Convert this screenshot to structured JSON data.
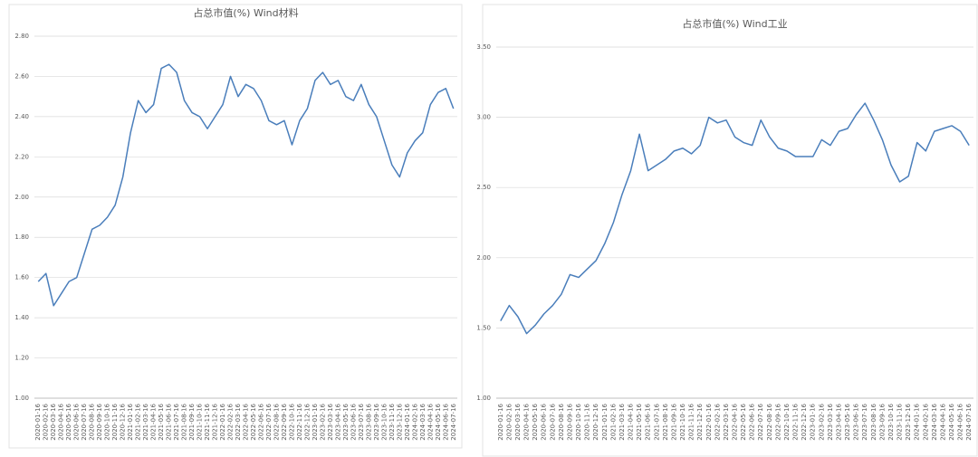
{
  "chart_data": [
    {
      "type": "line",
      "title": "占总市值(%) Wind材料",
      "x": [
        "2020-01-16",
        "2020-02-16",
        "2020-03-16",
        "2020-04-16",
        "2020-05-16",
        "2020-06-16",
        "2020-07-16",
        "2020-08-16",
        "2020-09-16",
        "2020-10-16",
        "2020-11-16",
        "2020-12-16",
        "2021-01-16",
        "2021-02-16",
        "2021-03-16",
        "2021-04-16",
        "2021-05-16",
        "2021-06-16",
        "2021-07-16",
        "2021-08-16",
        "2021-09-16",
        "2021-10-16",
        "2021-11-16",
        "2021-12-16",
        "2022-01-16",
        "2022-02-16",
        "2022-03-16",
        "2022-04-16",
        "2022-05-16",
        "2022-06-16",
        "2022-07-16",
        "2022-08-16",
        "2022-09-16",
        "2022-10-16",
        "2022-11-16",
        "2022-12-16",
        "2023-01-16",
        "2023-02-16",
        "2023-03-16",
        "2023-04-16",
        "2023-05-16",
        "2023-06-16",
        "2023-07-16",
        "2023-08-16",
        "2023-09-16",
        "2023-10-16",
        "2023-11-16",
        "2023-12-16",
        "2024-01-16",
        "2024-02-16",
        "2024-03-16",
        "2024-04-16",
        "2024-05-16",
        "2024-06-16",
        "2024-07-16"
      ],
      "series": [
        {
          "color": "#4a7ebb",
          "values": [
            1.58,
            1.62,
            1.46,
            1.52,
            1.58,
            1.6,
            1.72,
            1.84,
            1.86,
            1.9,
            1.96,
            2.1,
            2.32,
            2.48,
            2.42,
            2.46,
            2.64,
            2.66,
            2.62,
            2.48,
            2.42,
            2.4,
            2.34,
            2.4,
            2.46,
            2.6,
            2.5,
            2.56,
            2.54,
            2.48,
            2.38,
            2.36,
            2.38,
            2.26,
            2.38,
            2.44,
            2.58,
            2.62,
            2.56,
            2.58,
            2.5,
            2.48,
            2.56,
            2.46,
            2.4,
            2.28,
            2.16,
            2.1,
            2.22,
            2.28,
            2.32,
            2.46,
            2.52,
            2.54,
            2.44
          ]
        }
      ],
      "ylim": [
        1.0,
        2.8
      ],
      "yticks": [
        {
          "value": 1.0,
          "label": "1.00"
        },
        {
          "value": 1.2,
          "label": "1.20"
        },
        {
          "value": 1.4,
          "label": "1.40"
        },
        {
          "value": 1.6,
          "label": "1.60"
        },
        {
          "value": 1.8,
          "label": "1.80"
        },
        {
          "value": 2.0,
          "label": "2.00"
        },
        {
          "value": 2.2,
          "label": "2.20"
        },
        {
          "value": 2.4,
          "label": "2.40"
        },
        {
          "value": 2.6,
          "label": "2.60"
        },
        {
          "value": 2.8,
          "label": "2.80"
        }
      ],
      "grid": true
    },
    {
      "type": "line",
      "title": "占总市值(%) Wind工业",
      "x": [
        "2020-01-16",
        "2020-02-16",
        "2020-03-16",
        "2020-04-16",
        "2020-05-16",
        "2020-06-16",
        "2020-07-16",
        "2020-08-16",
        "2020-09-16",
        "2020-10-16",
        "2020-11-16",
        "2020-12-16",
        "2021-01-16",
        "2021-02-16",
        "2021-03-16",
        "2021-04-16",
        "2021-05-16",
        "2021-06-16",
        "2021-07-16",
        "2021-08-16",
        "2021-09-16",
        "2021-10-16",
        "2021-11-16",
        "2021-12-16",
        "2022-01-16",
        "2022-02-16",
        "2022-03-16",
        "2022-04-16",
        "2022-05-16",
        "2022-06-16",
        "2022-07-16",
        "2022-08-16",
        "2022-09-16",
        "2022-10-16",
        "2022-11-16",
        "2022-12-16",
        "2023-01-16",
        "2023-02-16",
        "2023-03-16",
        "2023-04-16",
        "2023-05-16",
        "2023-06-16",
        "2023-07-16",
        "2023-08-16",
        "2023-09-16",
        "2023-10-16",
        "2023-11-16",
        "2023-12-16",
        "2024-01-16",
        "2024-02-16",
        "2024-03-16",
        "2024-04-16",
        "2024-05-16",
        "2024-06-16",
        "2024-07-16"
      ],
      "series": [
        {
          "color": "#4a7ebb",
          "values": [
            1.55,
            1.66,
            1.58,
            1.46,
            1.52,
            1.6,
            1.66,
            1.74,
            1.88,
            1.86,
            1.92,
            1.98,
            2.1,
            2.25,
            2.45,
            2.62,
            2.88,
            2.62,
            2.66,
            2.7,
            2.76,
            2.78,
            2.74,
            2.8,
            3.0,
            2.96,
            2.98,
            2.86,
            2.82,
            2.8,
            2.98,
            2.86,
            2.78,
            2.76,
            2.72,
            2.72,
            2.72,
            2.84,
            2.8,
            2.9,
            2.92,
            3.02,
            3.1,
            2.98,
            2.84,
            2.66,
            2.54,
            2.58,
            2.82,
            2.76,
            2.9,
            2.92,
            2.94,
            2.9,
            2.8
          ]
        }
      ],
      "ylim": [
        1.0,
        3.5
      ],
      "yticks": [
        {
          "value": 1.0,
          "label": "1.00"
        },
        {
          "value": 1.5,
          "label": "1.50"
        },
        {
          "value": 2.0,
          "label": "2.00"
        },
        {
          "value": 2.5,
          "label": "2.50"
        },
        {
          "value": 3.0,
          "label": "3.00"
        },
        {
          "value": 3.5,
          "label": "3.50"
        }
      ],
      "grid": true
    }
  ]
}
